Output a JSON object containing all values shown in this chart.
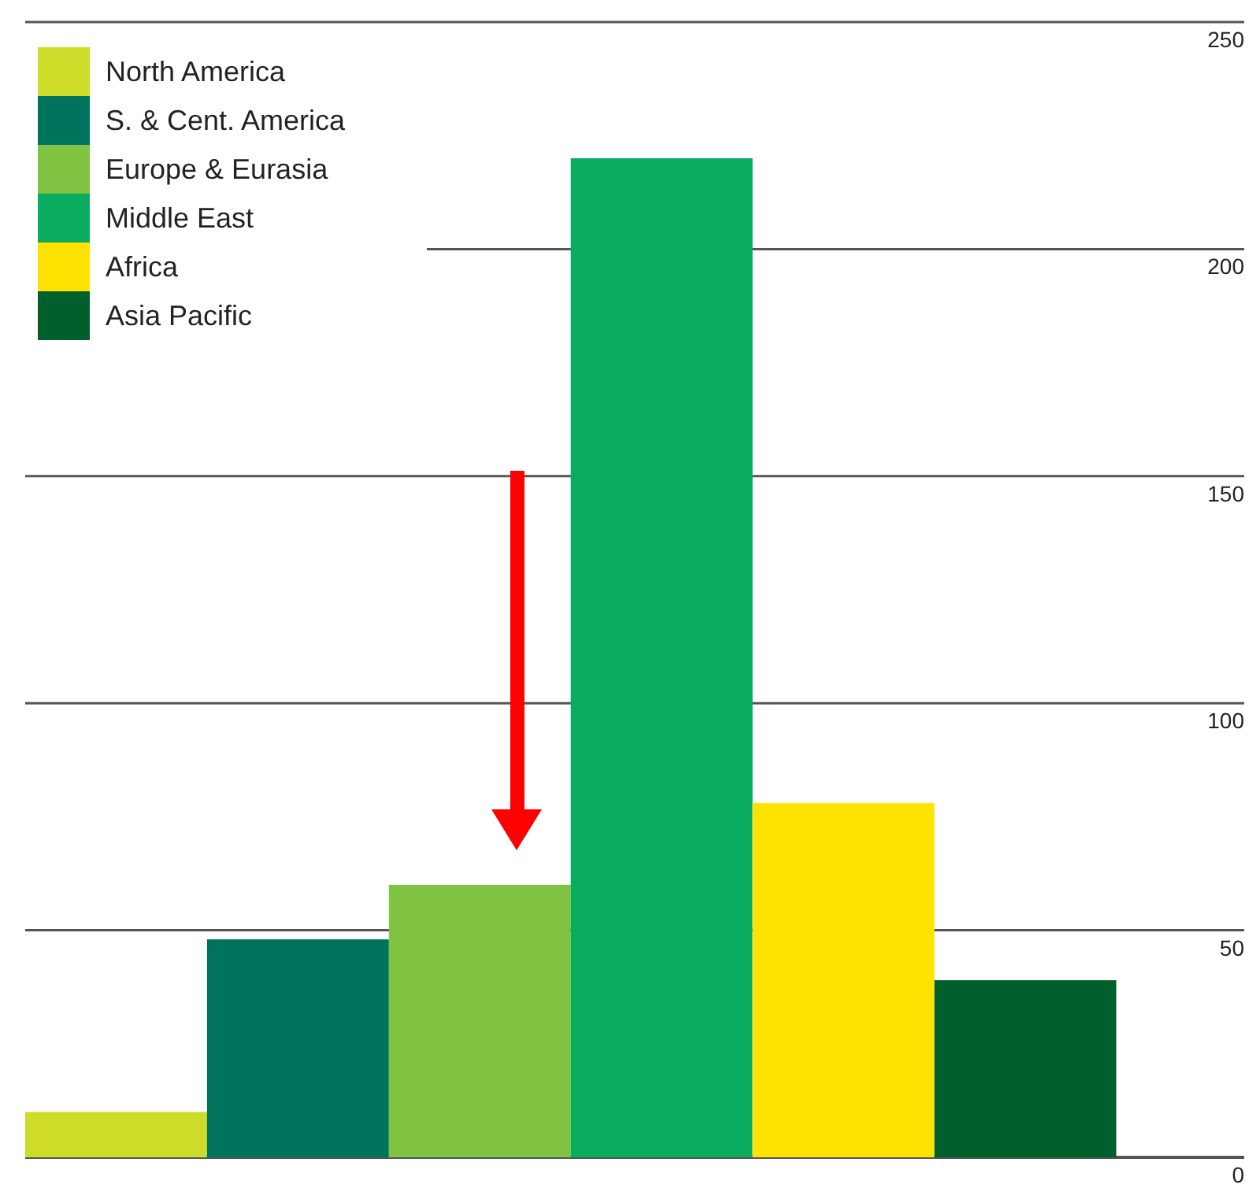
{
  "chart_data": {
    "type": "bar",
    "categories": [
      null,
      null,
      null,
      null,
      null,
      null
    ],
    "series": [
      {
        "name": "North America",
        "color": "#cddc28",
        "values": [
          10,
          null,
          null,
          null,
          null,
          null
        ]
      },
      {
        "name": "S. & Cent. America",
        "color": "#00735c",
        "values": [
          null,
          48,
          null,
          null,
          null,
          null
        ]
      },
      {
        "name": "Europe & Eurasia",
        "color": "#80c242",
        "values": [
          null,
          null,
          60,
          null,
          null,
          null
        ]
      },
      {
        "name": "Middle East",
        "color": "#0aac5f",
        "values": [
          null,
          null,
          null,
          220,
          null,
          null
        ]
      },
      {
        "name": "Africa",
        "color": "#ffe300",
        "values": [
          null,
          null,
          null,
          null,
          78,
          null
        ]
      },
      {
        "name": "Asia Pacific",
        "color": "#005f2b",
        "values": [
          null,
          null,
          null,
          null,
          null,
          39
        ]
      }
    ],
    "stacked": true,
    "ylim": [
      0,
      250
    ],
    "yticks": [
      0,
      50,
      100,
      150,
      200,
      250
    ],
    "grid": "y",
    "legend": "top left"
  }
}
